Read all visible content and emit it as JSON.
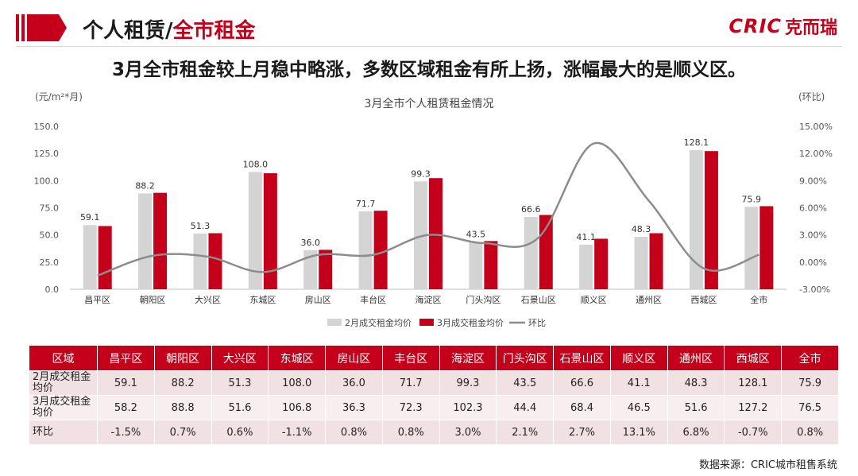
{
  "header": {
    "title_prefix": "个人租赁/",
    "title_accent": "全市租金",
    "brand_en": "CRIC",
    "brand_cn": "克而瑞"
  },
  "headline": "3月全市租金较上月稳中略涨，多数区域租金有所上扬，涨幅最大的是顺义区。",
  "colors": {
    "accent": "#c4001a",
    "bar_feb": "#d4d4d4",
    "bar_mar": "#c4001a",
    "line": "#8c8c8c"
  },
  "chart_data": {
    "type": "bar",
    "title": "3月全市个人租赁租金情况",
    "ylabel": "(元/m²*月)",
    "y2label": "(环比)",
    "ylim": [
      0,
      150
    ],
    "yticks": [
      "0.0",
      "25.0",
      "50.0",
      "75.0",
      "100.0",
      "125.0",
      "150.0"
    ],
    "y2lim": [
      -3,
      15
    ],
    "y2ticks": [
      "-3.00%",
      "0.00%",
      "3.00%",
      "6.00%",
      "9.00%",
      "12.00%",
      "15.00%"
    ],
    "categories": [
      "昌平区",
      "朝阳区",
      "大兴区",
      "东城区",
      "房山区",
      "丰台区",
      "海淀区",
      "门头沟区",
      "石景山区",
      "顺义区",
      "通州区",
      "西城区",
      "全市"
    ],
    "series": [
      {
        "name": "2月成交租金均价",
        "type": "bar",
        "values": [
          59.1,
          88.2,
          51.3,
          108.0,
          36.0,
          71.7,
          99.3,
          43.5,
          66.6,
          41.1,
          48.3,
          128.1,
          75.9
        ]
      },
      {
        "name": "3月成交租金均价",
        "type": "bar",
        "values": [
          58.2,
          88.8,
          51.6,
          106.8,
          36.3,
          72.3,
          102.3,
          44.4,
          68.4,
          46.5,
          51.6,
          127.2,
          76.5
        ]
      },
      {
        "name": "环比",
        "type": "line",
        "axis": "right",
        "values": [
          -1.5,
          0.7,
          0.6,
          -1.1,
          0.8,
          0.8,
          3.0,
          2.1,
          2.7,
          13.1,
          6.8,
          -0.7,
          0.8
        ]
      }
    ],
    "feb_labels": [
      "59.1",
      "88.2",
      "51.3",
      "108.0",
      "36.0",
      "71.7",
      "99.3",
      "43.5",
      "66.6",
      "41.1",
      "48.3",
      "128.1",
      "75.9"
    ],
    "legend_position": "bottom",
    "grid": false
  },
  "table": {
    "headers": [
      "区域",
      "昌平区",
      "朝阳区",
      "大兴区",
      "东城区",
      "房山区",
      "丰台区",
      "海淀区",
      "门头沟区",
      "石景山区",
      "顺义区",
      "通州区",
      "西城区",
      "全市"
    ],
    "rows": [
      {
        "label": "2月成交租金均价",
        "cells": [
          "59.1",
          "88.2",
          "51.3",
          "108.0",
          "36.0",
          "71.7",
          "99.3",
          "43.5",
          "66.6",
          "41.1",
          "48.3",
          "128.1",
          "75.9"
        ]
      },
      {
        "label": "3月成交租金均价",
        "cells": [
          "58.2",
          "88.8",
          "51.6",
          "106.8",
          "36.3",
          "72.3",
          "102.3",
          "44.4",
          "68.4",
          "46.5",
          "51.6",
          "127.2",
          "76.5"
        ]
      },
      {
        "label": "环比",
        "cells": [
          "-1.5%",
          "0.7%",
          "0.6%",
          "-1.1%",
          "0.8%",
          "0.8%",
          "3.0%",
          "2.1%",
          "2.7%",
          "13.1%",
          "6.8%",
          "-0.7%",
          "0.8%"
        ]
      }
    ]
  },
  "source": "数据来源：CRIC城市租售系统"
}
